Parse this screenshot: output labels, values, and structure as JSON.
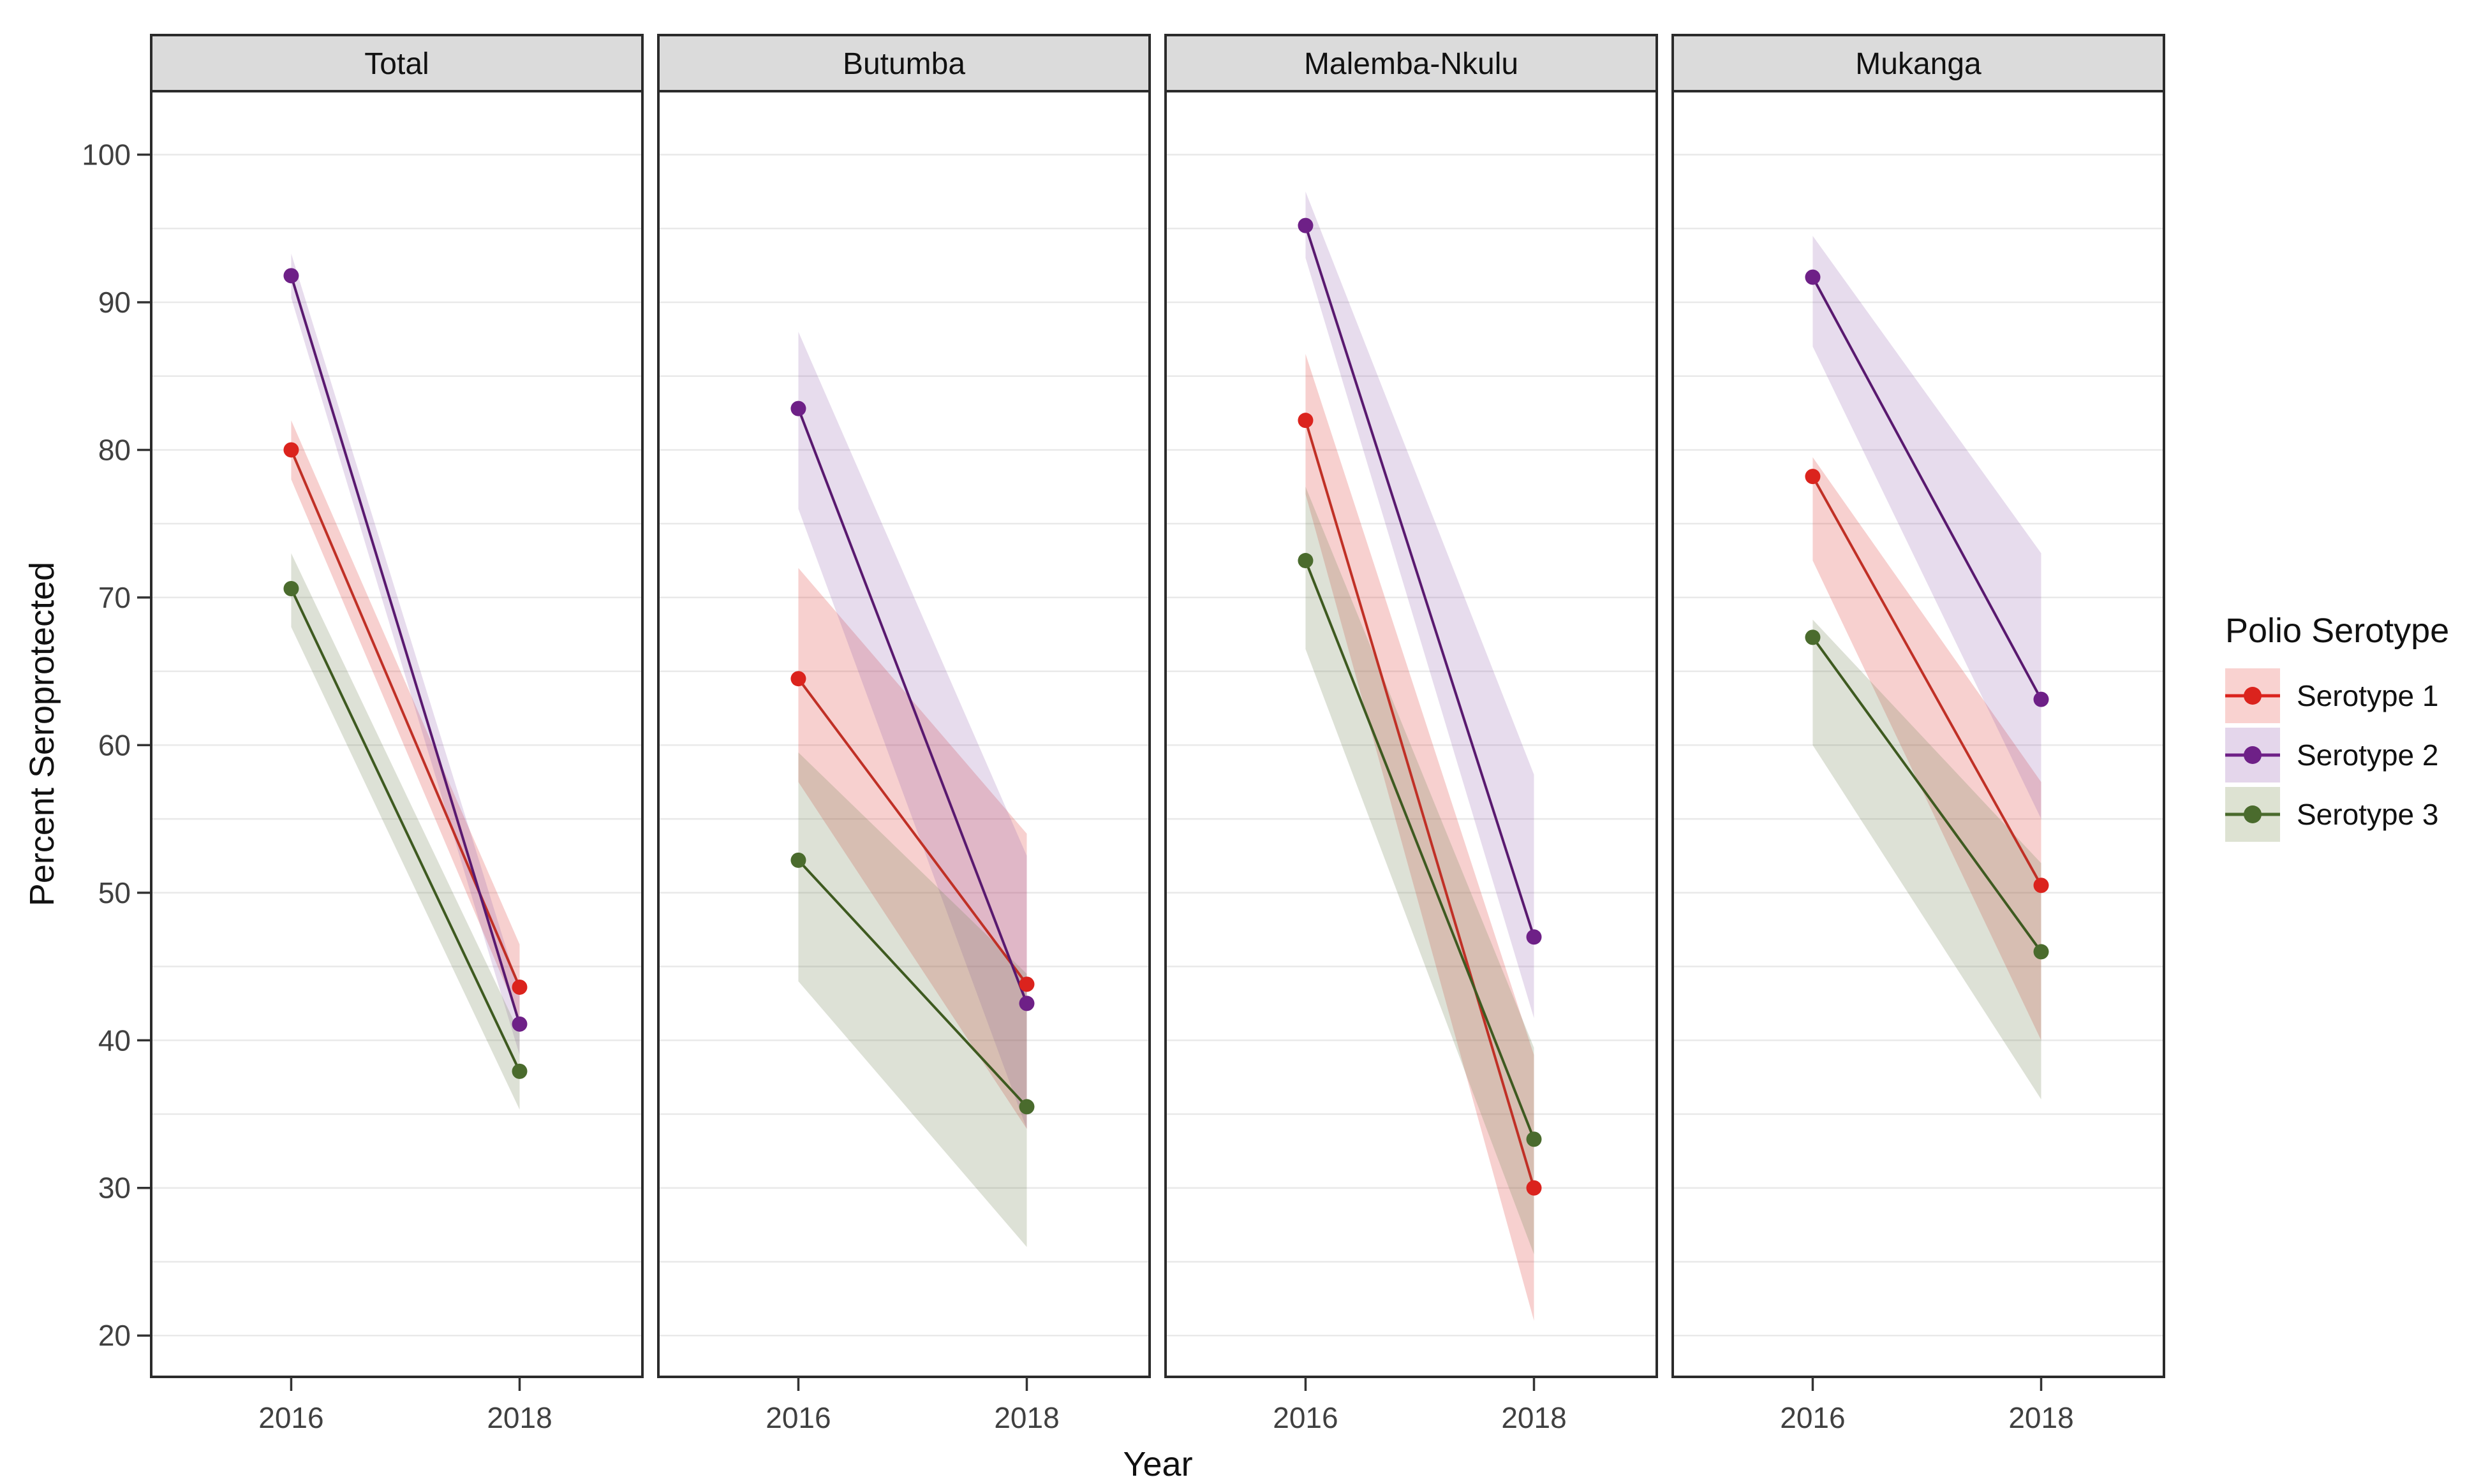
{
  "axes": {
    "x_title": "Year",
    "y_title": "Percent Seroprotected"
  },
  "legend": {
    "title": "Polio Serotype",
    "items": [
      {
        "label": "Serotype 1"
      },
      {
        "label": "Serotype 2"
      },
      {
        "label": "Serotype 3"
      }
    ]
  },
  "theme": {
    "strip_bg": "#DBDBDB",
    "panel_bg": "#FFFFFF",
    "panel_border": "#2B2B2B",
    "gridline": "#E9E9E9",
    "tick_color": "#333333",
    "tick_label_color": "#404040",
    "strip_text_color": "#111111"
  },
  "chart_data": {
    "type": "line",
    "title": "",
    "xlabel": "Year",
    "ylabel": "Percent Seroprotected",
    "x_categories": [
      "2016",
      "2018"
    ],
    "y_ticks": [
      100,
      90,
      80,
      70,
      60,
      50,
      40,
      30,
      20
    ],
    "y_domain": [
      17.2,
      104.3
    ],
    "gridline_step": 5,
    "grid": "horizontal-only",
    "legend_position": "right",
    "facet_titles": [
      "Total",
      "Butumba",
      "Malemba-Nkulu",
      "Mukanga"
    ],
    "series_styles": [
      {
        "name": "Serotype 1",
        "point_color": "#DB231D",
        "line_color": "#C03026",
        "ribbon_fill": "rgba(222,60,55,0.24)",
        "key_bg": "#F9D2D0"
      },
      {
        "name": "Serotype 2",
        "point_color": "#6E2087",
        "line_color": "#59196F",
        "ribbon_fill": "rgba(140,90,170,0.21)",
        "key_bg": "#E4D6EB"
      },
      {
        "name": "Serotype 3",
        "point_color": "#4A6B2D",
        "line_color": "#3E5A20",
        "ribbon_fill": "rgba(120,135,90,0.25)",
        "key_bg": "#DDE2D2"
      }
    ],
    "facets": [
      {
        "name": "Total",
        "series": [
          {
            "name": "Serotype 1",
            "values": [
              80.0,
              43.6
            ],
            "ci": [
              [
                78.0,
                82.0
              ],
              [
                41.5,
                46.5
              ]
            ]
          },
          {
            "name": "Serotype 2",
            "values": [
              91.8,
              41.1
            ],
            "ci": [
              [
                90.3,
                93.3
              ],
              [
                39.0,
                43.3
              ]
            ]
          },
          {
            "name": "Serotype 3",
            "values": [
              70.6,
              37.9
            ],
            "ci": [
              [
                68.0,
                73.0
              ],
              [
                35.3,
                40.5
              ]
            ]
          }
        ]
      },
      {
        "name": "Butumba",
        "series": [
          {
            "name": "Serotype 1",
            "values": [
              64.5,
              43.8
            ],
            "ci": [
              [
                57.5,
                72.0
              ],
              [
                34.0,
                54.0
              ]
            ]
          },
          {
            "name": "Serotype 2",
            "values": [
              82.8,
              42.5
            ],
            "ci": [
              [
                76.0,
                88.0
              ],
              [
                34.0,
                52.5
              ]
            ]
          },
          {
            "name": "Serotype 3",
            "values": [
              52.2,
              35.5
            ],
            "ci": [
              [
                44.0,
                59.5
              ],
              [
                26.0,
                44.5
              ]
            ]
          }
        ]
      },
      {
        "name": "Malemba-Nkulu",
        "series": [
          {
            "name": "Serotype 1",
            "values": [
              82.0,
              30.0
            ],
            "ci": [
              [
                77.0,
                86.5
              ],
              [
                21.0,
                39.0
              ]
            ]
          },
          {
            "name": "Serotype 2",
            "values": [
              95.2,
              47.0
            ],
            "ci": [
              [
                93.0,
                97.5
              ],
              [
                41.5,
                58.0
              ]
            ]
          },
          {
            "name": "Serotype 3",
            "values": [
              72.5,
              33.3
            ],
            "ci": [
              [
                66.5,
                77.5
              ],
              [
                25.5,
                39.5
              ]
            ]
          }
        ]
      },
      {
        "name": "Mukanga",
        "series": [
          {
            "name": "Serotype 1",
            "values": [
              78.2,
              50.5
            ],
            "ci": [
              [
                72.5,
                79.5
              ],
              [
                40.0,
                57.5
              ]
            ]
          },
          {
            "name": "Serotype 2",
            "values": [
              91.7,
              63.1
            ],
            "ci": [
              [
                87.0,
                94.5
              ],
              [
                55.0,
                73.0
              ]
            ]
          },
          {
            "name": "Serotype 3",
            "values": [
              67.3,
              46.0
            ],
            "ci": [
              [
                60.0,
                68.5
              ],
              [
                36.0,
                52.0
              ]
            ]
          }
        ]
      }
    ]
  }
}
